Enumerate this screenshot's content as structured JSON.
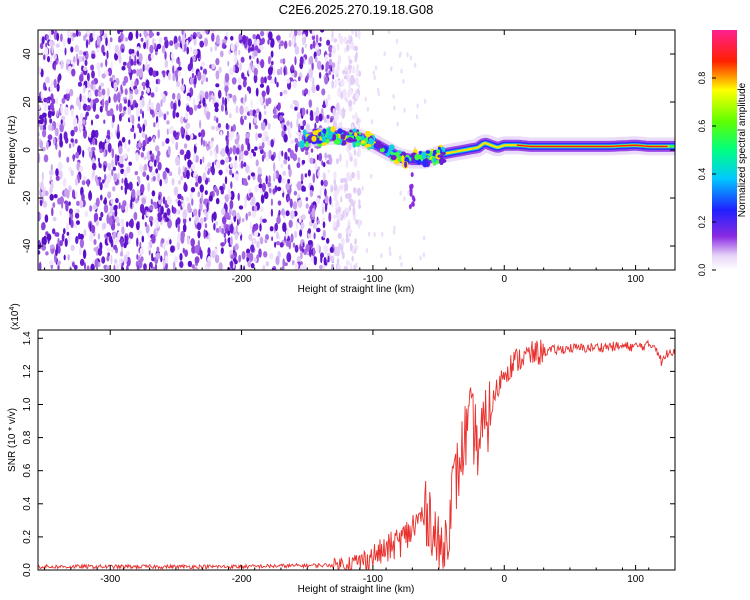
{
  "title": "C2E6.2025.270.19.18.G08",
  "chart_data": [
    {
      "type": "heatmap",
      "xlabel": "Height of straight line (km)",
      "ylabel": "Frequency (Hz)",
      "xlim": [
        -355,
        130
      ],
      "ylim": [
        -50,
        50
      ],
      "x_ticks": [
        -300,
        -200,
        -100,
        0,
        100
      ],
      "y_ticks": [
        -40,
        -20,
        0,
        20,
        40
      ],
      "noise_region_end_km": -120,
      "ridge": {
        "x": [
          -150,
          -130,
          -110,
          -100,
          -90,
          -80,
          -70,
          -60,
          -50,
          -40,
          -30,
          -20,
          -15,
          -10,
          -5,
          0,
          10,
          20,
          30,
          50,
          80,
          100,
          110,
          130
        ],
        "y": [
          5,
          6,
          5,
          3,
          0,
          -3,
          -4,
          -4,
          -2,
          -1,
          0,
          1,
          3,
          2,
          1,
          2,
          2,
          1.5,
          1.5,
          1.5,
          1.5,
          2,
          1.5,
          1.5
        ]
      },
      "colorbar": {
        "label": "Normalized spectral amplitude",
        "range": [
          0,
          1
        ],
        "ticks": [
          0.0,
          0.2,
          0.4,
          0.6,
          0.8
        ]
      }
    },
    {
      "type": "line",
      "xlabel": "Height of straight line (km)",
      "ylabel": "SNR (10 * v/v)",
      "y_multiplier": "(x10",
      "y_multiplier_exp": "4",
      "y_multiplier_close": ")",
      "xlim": [
        -355,
        130
      ],
      "ylim": [
        0,
        1.45
      ],
      "x_ticks": [
        -300,
        -200,
        -100,
        0,
        100
      ],
      "y_ticks": [
        0.0,
        0.2,
        0.4,
        0.6,
        0.8,
        1.0,
        1.2,
        1.4
      ],
      "series": [
        {
          "name": "SNR",
          "color": "#e8302c",
          "x": [
            -355,
            -300,
            -200,
            -130,
            -110,
            -90,
            -75,
            -65,
            -58,
            -55,
            -50,
            -45,
            -40,
            -35,
            -30,
            -25,
            -20,
            -15,
            -10,
            -5,
            0,
            10,
            20,
            30,
            40,
            50,
            60,
            80,
            100,
            115,
            120,
            125,
            130
          ],
          "y": [
            0.02,
            0.02,
            0.02,
            0.03,
            0.05,
            0.12,
            0.2,
            0.3,
            0.36,
            0.3,
            0.1,
            0.15,
            0.45,
            0.6,
            0.8,
            0.9,
            0.75,
            0.85,
            0.98,
            1.1,
            1.2,
            1.27,
            1.3,
            1.32,
            1.33,
            1.34,
            1.34,
            1.35,
            1.35,
            1.36,
            1.25,
            1.32,
            1.33
          ]
        }
      ]
    }
  ]
}
